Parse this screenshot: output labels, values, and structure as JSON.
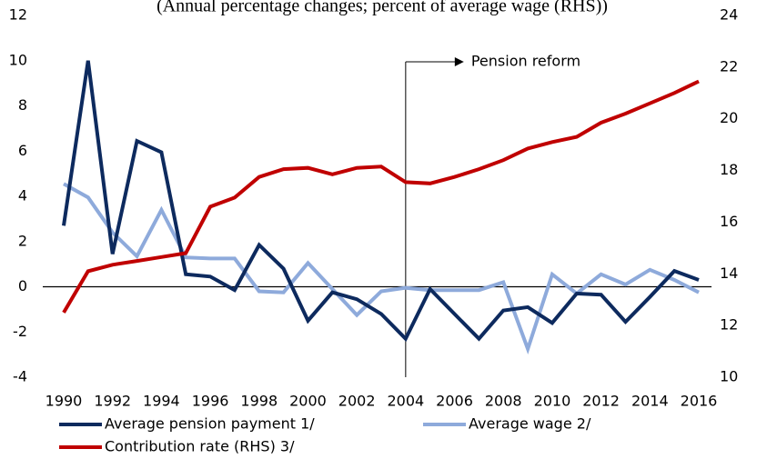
{
  "chart_data": {
    "type": "line",
    "title": "(Annual percentage changes; percent of average wage (RHS))",
    "categories": [
      "1990",
      null,
      "1992",
      null,
      "1994",
      null,
      "1996",
      null,
      "1998",
      null,
      "2000",
      null,
      "2002",
      null,
      "2004",
      null,
      "2006",
      null,
      "2008",
      null,
      "2010",
      null,
      "2012",
      null,
      "2014",
      null,
      "2016"
    ],
    "series": [
      {
        "name": "Average pension payment 1/",
        "color": "#0d2a5e",
        "values": [
          2.7,
          10.0,
          1.45,
          6.45,
          5.95,
          0.55,
          0.45,
          -0.15,
          1.85,
          0.8,
          -1.5,
          -0.25,
          -0.55,
          -1.2,
          -2.3,
          -0.1,
          -1.2,
          -2.3,
          -1.05,
          -0.9,
          -1.6,
          -0.3,
          -0.35,
          -1.55,
          -0.45,
          0.7,
          0.3
        ]
      },
      {
        "name": "Average wage 2/",
        "color": "#8eaadb",
        "values": [
          4.55,
          3.95,
          2.4,
          1.35,
          3.4,
          1.3,
          1.25,
          1.25,
          -0.2,
          -0.25,
          1.05,
          -0.1,
          -1.25,
          -0.2,
          -0.05,
          -0.15,
          -0.15,
          -0.15,
          0.2,
          -2.75,
          0.55,
          -0.3,
          0.55,
          0.1,
          0.75,
          0.3,
          -0.25
        ]
      },
      {
        "name": "Contribution rate (RHS) 3/",
        "color": "#c00000",
        "axis": "y2",
        "values": [
          12.5,
          14.1,
          14.35,
          14.5,
          14.65,
          14.8,
          16.6,
          16.95,
          17.75,
          18.05,
          18.1,
          17.85,
          18.1,
          18.15,
          17.55,
          17.5,
          17.75,
          18.05,
          18.4,
          18.85,
          19.1,
          19.3,
          19.85,
          20.2,
          20.6,
          21.0,
          21.45
        ]
      }
    ],
    "ylim": [
      -4,
      12
    ],
    "yticks": [
      -4,
      -2,
      0,
      2,
      4,
      6,
      8,
      10,
      12
    ],
    "y2lim": [
      10,
      24
    ],
    "y2ticks": [
      10,
      12,
      14,
      16,
      18,
      20,
      22,
      24
    ],
    "annotation": {
      "text": "Pension reform",
      "x": "2004"
    }
  }
}
